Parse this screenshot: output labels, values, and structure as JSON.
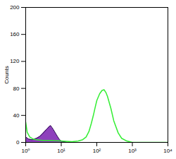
{
  "chart_data": {
    "type": "histogram",
    "y_label": "Counts",
    "log": "x",
    "xlim": [
      1,
      10000
    ],
    "xticks": [
      {
        "value": 1,
        "label": "10⁰"
      },
      {
        "value": 10,
        "label": "10¹"
      },
      {
        "value": 100,
        "label": "10²"
      },
      {
        "value": 1000,
        "label": "10³"
      },
      {
        "value": 10000,
        "label": "10⁴"
      }
    ],
    "ylim": [
      0,
      200
    ],
    "yticks": [
      0,
      40,
      80,
      120,
      160,
      200
    ],
    "series": [
      {
        "type": "area",
        "color": "#7a1fb0",
        "x": [
          1,
          1.2,
          1.5,
          2,
          2.5,
          3,
          3.5,
          4,
          4.5,
          5,
          5.5,
          6,
          7,
          8,
          9,
          10,
          12,
          15,
          20
        ],
        "values": [
          8,
          5,
          4,
          6,
          9,
          13,
          17,
          20,
          23,
          25,
          22,
          19,
          13,
          8,
          4,
          2,
          1,
          0,
          0
        ]
      },
      {
        "type": "line",
        "color": "#33ee33",
        "x": [
          1,
          1.1,
          1.3,
          1.6,
          2,
          3,
          5,
          10,
          20,
          30,
          40,
          50,
          60,
          70,
          80,
          90,
          100,
          120,
          140,
          160,
          180,
          200,
          250,
          300,
          400,
          500,
          700,
          1000,
          10000
        ],
        "values": [
          30,
          15,
          8,
          5,
          4,
          3,
          3,
          2,
          1,
          2,
          4,
          8,
          16,
          28,
          40,
          52,
          62,
          72,
          77,
          78,
          74,
          68,
          50,
          32,
          14,
          6,
          2,
          0,
          0
        ]
      }
    ]
  }
}
